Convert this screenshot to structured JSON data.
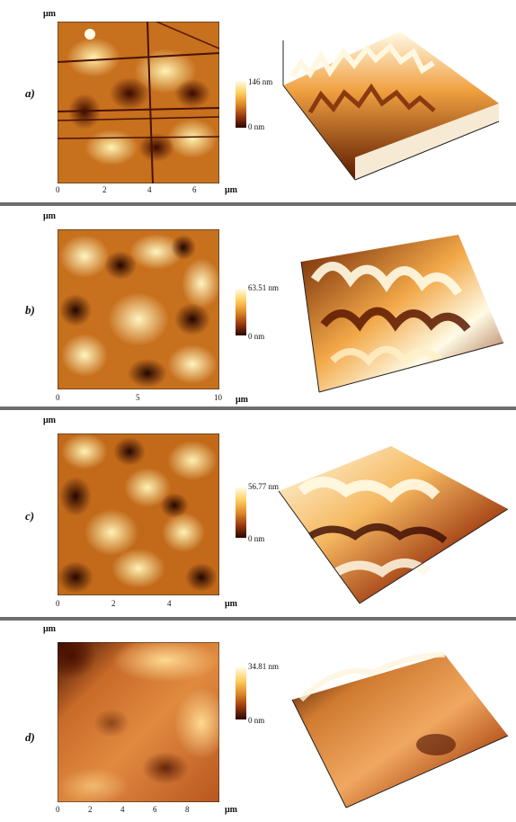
{
  "panels": [
    {
      "label": "a)",
      "unit_top": "μm",
      "unit_bottom": "μm",
      "x_ticks": [
        "0",
        "2",
        "4",
        "6"
      ],
      "colorbar_max": "146 nm",
      "colorbar_min": "0 nm"
    },
    {
      "label": "b)",
      "unit_top": "μm",
      "unit_bottom": "μm",
      "x_ticks": [
        "0",
        "5",
        "10"
      ],
      "colorbar_max": "63.51 nm",
      "colorbar_min": "0 nm"
    },
    {
      "label": "c)",
      "unit_top": "μm",
      "unit_bottom": "μm",
      "x_ticks": [
        "0",
        "2",
        "4"
      ],
      "colorbar_max": "56.77 nm",
      "colorbar_min": "0 nm"
    },
    {
      "label": "d)",
      "unit_top": "μm",
      "unit_bottom": "μm",
      "x_ticks": [
        "0",
        "2",
        "4",
        "6",
        "8"
      ],
      "colorbar_max": "34.81 nm",
      "colorbar_min": "0 nm"
    }
  ],
  "colors": {
    "separator": "#6e6e6e",
    "height_dark": "#2a0600",
    "height_mid": "#e08a2a",
    "height_light": "#fffbe6"
  }
}
